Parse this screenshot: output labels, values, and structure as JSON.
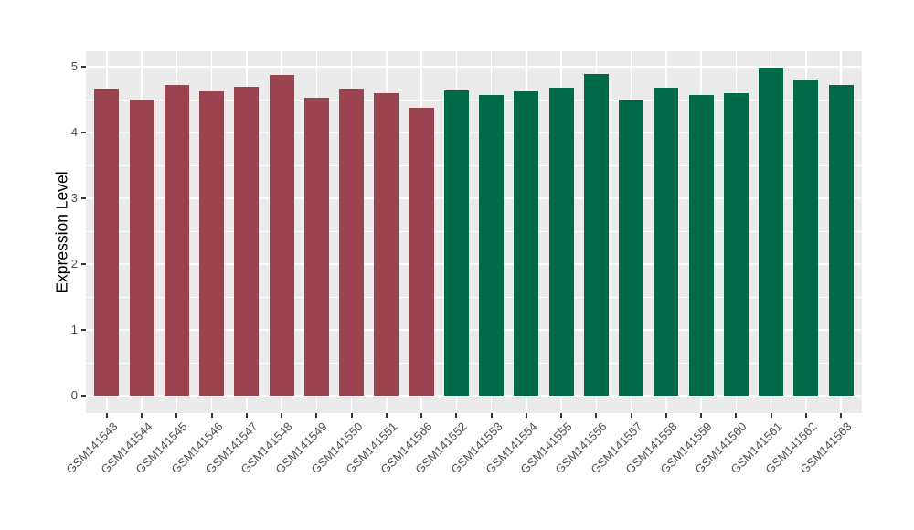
{
  "chart_data": {
    "type": "bar",
    "title": "",
    "xlabel": "",
    "ylabel": "Expression Level",
    "ylim": [
      0,
      5.25
    ],
    "yticks": [
      0,
      1,
      2,
      3,
      4,
      5
    ],
    "yminor": [
      0.5,
      1.5,
      2.5,
      3.5,
      4.5
    ],
    "grid": "on",
    "legend": "none",
    "categories": [
      "GSM141543",
      "GSM141544",
      "GSM141545",
      "GSM141546",
      "GSM141547",
      "GSM141548",
      "GSM141549",
      "GSM141550",
      "GSM141551",
      "GSM141566",
      "GSM141552",
      "GSM141553",
      "GSM141554",
      "GSM141555",
      "GSM141556",
      "GSM141557",
      "GSM141558",
      "GSM141559",
      "GSM141560",
      "GSM141561",
      "GSM141562",
      "GSM141563"
    ],
    "values": [
      4.66,
      4.5,
      4.72,
      4.63,
      4.7,
      4.88,
      4.53,
      4.66,
      4.6,
      4.38,
      4.64,
      4.57,
      4.63,
      4.68,
      4.89,
      4.5,
      4.68,
      4.57,
      4.6,
      4.98,
      4.81,
      4.72
    ],
    "group_colors": [
      "#9B4450",
      "#006948"
    ],
    "group_index": [
      0,
      0,
      0,
      0,
      0,
      0,
      0,
      0,
      0,
      0,
      1,
      1,
      1,
      1,
      1,
      1,
      1,
      1,
      1,
      1,
      1,
      1
    ]
  },
  "style": {
    "figure_bg": "#FFFFFF",
    "panel_bg": "#EBEBEB",
    "grid_color": "#FFFFFF",
    "tick_color": "#333333",
    "axis_text_color": "#4D4D4D",
    "axis_title_color": "#000000"
  }
}
